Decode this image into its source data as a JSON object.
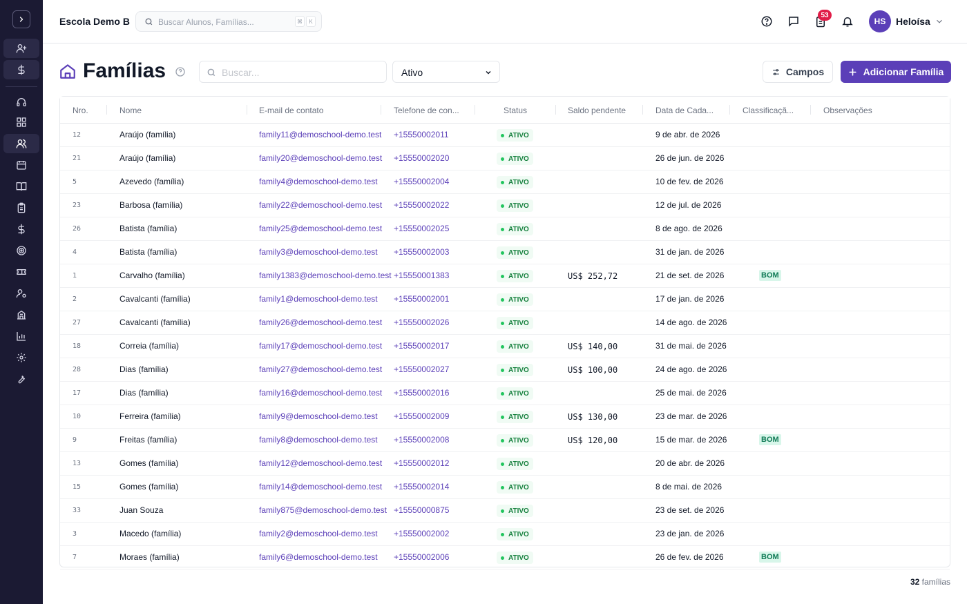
{
  "topbar": {
    "school_name": "Escola Demo B",
    "search_placeholder": "Buscar Alunos, Famílias...",
    "kbd_mod": "⌘",
    "kbd_key": "K",
    "notification_badge": "53",
    "avatar_initials": "HS",
    "user_name": "Heloísa"
  },
  "page": {
    "title": "Famílias",
    "search_placeholder": "Buscar...",
    "filter_value": "Ativo",
    "campos_label": "Campos",
    "add_label": "Adicionar Família"
  },
  "sidebar": {
    "items": [
      "add-user",
      "billing",
      "support",
      "dashboard",
      "families",
      "calendar",
      "courses",
      "checklist",
      "finance",
      "goals",
      "tickets",
      "staff",
      "school",
      "reports",
      "settings",
      "tools"
    ]
  },
  "table": {
    "columns": {
      "num": "Nro.",
      "name": "Nome",
      "email": "E-mail de contato",
      "phone": "Telefone de con...",
      "status": "Status",
      "saldo": "Saldo pendente",
      "date": "Data de Cada...",
      "class": "Classificaçã...",
      "obs": "Observações"
    },
    "rows": [
      {
        "num": "12",
        "name": "Araújo (família)",
        "email": "family11@demoschool-demo.test",
        "phone": "+15550002011",
        "status": "ATIVO",
        "saldo": "",
        "date": "9 de abr. de 2026",
        "class": ""
      },
      {
        "num": "21",
        "name": "Araújo (família)",
        "email": "family20@demoschool-demo.test",
        "phone": "+15550002020",
        "status": "ATIVO",
        "saldo": "",
        "date": "26 de jun. de 2026",
        "class": ""
      },
      {
        "num": "5",
        "name": "Azevedo (família)",
        "email": "family4@demoschool-demo.test",
        "phone": "+15550002004",
        "status": "ATIVO",
        "saldo": "",
        "date": "10 de fev. de 2026",
        "class": ""
      },
      {
        "num": "23",
        "name": "Barbosa (família)",
        "email": "family22@demoschool-demo.test",
        "phone": "+15550002022",
        "status": "ATIVO",
        "saldo": "",
        "date": "12 de jul. de 2026",
        "class": ""
      },
      {
        "num": "26",
        "name": "Batista (família)",
        "email": "family25@demoschool-demo.test",
        "phone": "+15550002025",
        "status": "ATIVO",
        "saldo": "",
        "date": "8 de ago. de 2026",
        "class": ""
      },
      {
        "num": "4",
        "name": "Batista (família)",
        "email": "family3@demoschool-demo.test",
        "phone": "+15550002003",
        "status": "ATIVO",
        "saldo": "",
        "date": "31 de jan. de 2026",
        "class": ""
      },
      {
        "num": "1",
        "name": "Carvalho (família)",
        "email": "family1383@demoschool-demo.test",
        "phone": "+15550001383",
        "status": "ATIVO",
        "saldo": "US$ 252,72",
        "date": "21 de set. de 2026",
        "class": "BOM"
      },
      {
        "num": "2",
        "name": "Cavalcanti (família)",
        "email": "family1@demoschool-demo.test",
        "phone": "+15550002001",
        "status": "ATIVO",
        "saldo": "",
        "date": "17 de jan. de 2026",
        "class": ""
      },
      {
        "num": "27",
        "name": "Cavalcanti (família)",
        "email": "family26@demoschool-demo.test",
        "phone": "+15550002026",
        "status": "ATIVO",
        "saldo": "",
        "date": "14 de ago. de 2026",
        "class": ""
      },
      {
        "num": "18",
        "name": "Correia (família)",
        "email": "family17@demoschool-demo.test",
        "phone": "+15550002017",
        "status": "ATIVO",
        "saldo": "US$ 140,00",
        "date": "31 de mai. de 2026",
        "class": ""
      },
      {
        "num": "28",
        "name": "Dias (família)",
        "email": "family27@demoschool-demo.test",
        "phone": "+15550002027",
        "status": "ATIVO",
        "saldo": "US$ 100,00",
        "date": "24 de ago. de 2026",
        "class": ""
      },
      {
        "num": "17",
        "name": "Dias (família)",
        "email": "family16@demoschool-demo.test",
        "phone": "+15550002016",
        "status": "ATIVO",
        "saldo": "",
        "date": "25 de mai. de 2026",
        "class": ""
      },
      {
        "num": "10",
        "name": "Ferreira (família)",
        "email": "family9@demoschool-demo.test",
        "phone": "+15550002009",
        "status": "ATIVO",
        "saldo": "US$ 130,00",
        "date": "23 de mar. de 2026",
        "class": ""
      },
      {
        "num": "9",
        "name": "Freitas (família)",
        "email": "family8@demoschool-demo.test",
        "phone": "+15550002008",
        "status": "ATIVO",
        "saldo": "US$ 120,00",
        "date": "15 de mar. de 2026",
        "class": "BOM"
      },
      {
        "num": "13",
        "name": "Gomes (família)",
        "email": "family12@demoschool-demo.test",
        "phone": "+15550002012",
        "status": "ATIVO",
        "saldo": "",
        "date": "20 de abr. de 2026",
        "class": ""
      },
      {
        "num": "15",
        "name": "Gomes (família)",
        "email": "family14@demoschool-demo.test",
        "phone": "+15550002014",
        "status": "ATIVO",
        "saldo": "",
        "date": "8 de mai. de 2026",
        "class": ""
      },
      {
        "num": "33",
        "name": "Juan Souza",
        "email": "family875@demoschool-demo.test",
        "phone": "+15550000875",
        "status": "ATIVO",
        "saldo": "",
        "date": "23 de set. de 2026",
        "class": ""
      },
      {
        "num": "3",
        "name": "Macedo (família)",
        "email": "family2@demoschool-demo.test",
        "phone": "+15550002002",
        "status": "ATIVO",
        "saldo": "",
        "date": "23 de jan. de 2026",
        "class": ""
      },
      {
        "num": "7",
        "name": "Moraes (família)",
        "email": "family6@demoschool-demo.test",
        "phone": "+15550002006",
        "status": "ATIVO",
        "saldo": "",
        "date": "26 de fev. de 2026",
        "class": "BOM"
      }
    ]
  },
  "footer": {
    "count": "32",
    "count_label": "famílias"
  },
  "colors": {
    "sidebar": "#1b1a33",
    "accent": "#5b3fb8",
    "status_green": "#15803d",
    "badge_red": "#e11d48"
  }
}
